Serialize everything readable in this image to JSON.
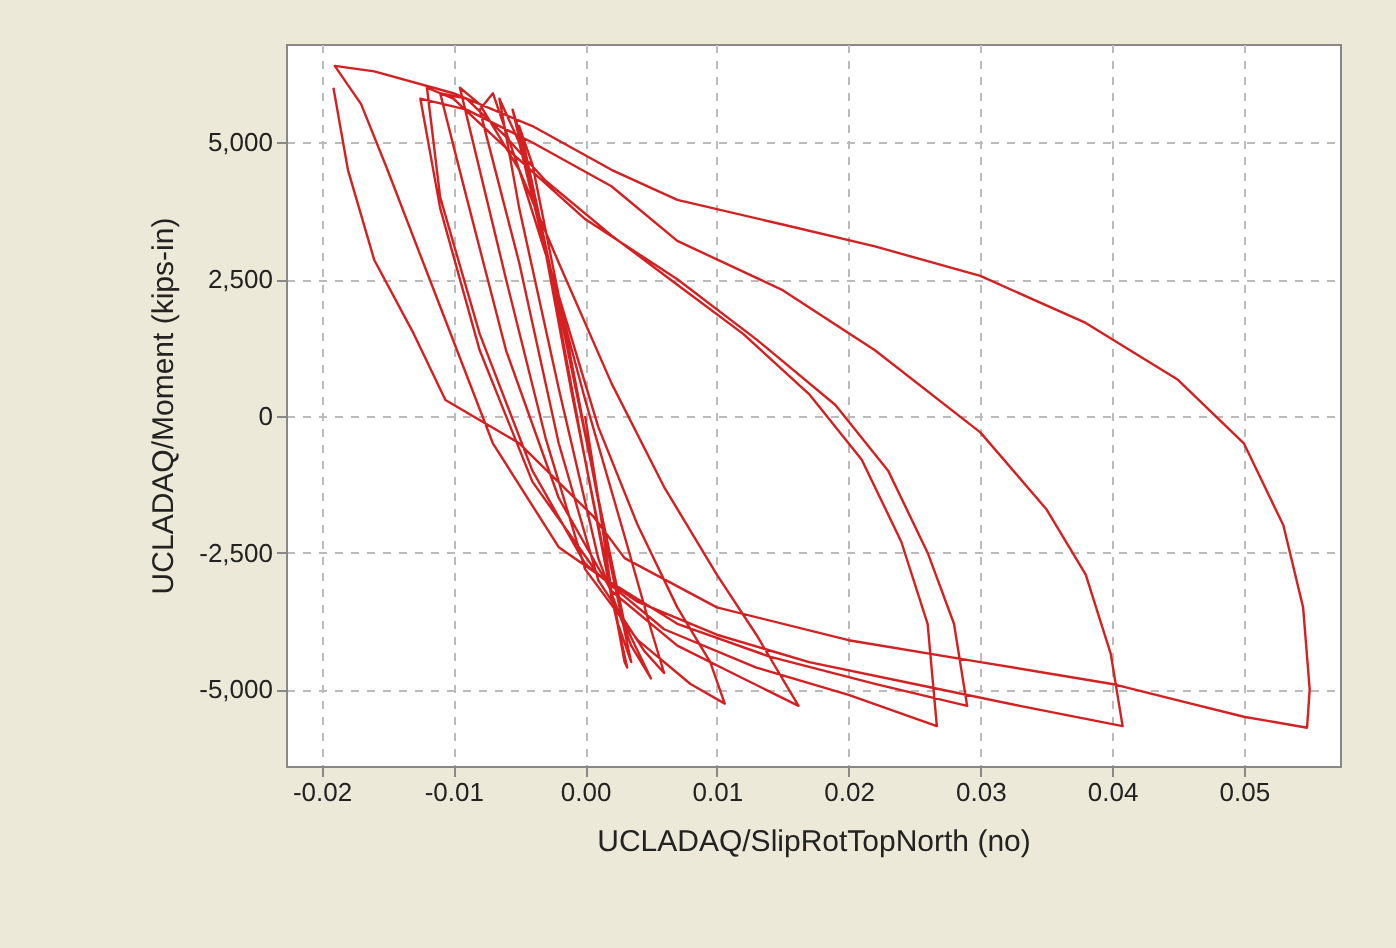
{
  "chart_data": {
    "type": "line",
    "xlabel": "UCLADAQ/SlipRotTopNorth (no)",
    "ylabel": "UCLADAQ/Moment (kips-in)",
    "xlim": [
      -0.0227,
      0.0573
    ],
    "ylim": [
      -6400,
      6800
    ],
    "xticks": [
      {
        "value": -0.02,
        "label": "-0.02"
      },
      {
        "value": -0.01,
        "label": "-0.01"
      },
      {
        "value": 0,
        "label": "0.00"
      },
      {
        "value": 0.01,
        "label": "0.01"
      },
      {
        "value": 0.02,
        "label": "0.02"
      },
      {
        "value": 0.03,
        "label": "0.03"
      },
      {
        "value": 0.04,
        "label": "0.04"
      },
      {
        "value": 0.05,
        "label": "0.05"
      }
    ],
    "yticks": [
      {
        "value": -5000,
        "label": "-5,000"
      },
      {
        "value": -2500,
        "label": "-2,500"
      },
      0,
      {
        "value": 2500,
        "label": "2,500"
      },
      {
        "value": 5000,
        "label": "5,000"
      }
    ],
    "grid": true,
    "marker": "none",
    "line_style": "solid",
    "series": [
      {
        "color": "#d42020",
        "x": [
          0,
          0.001,
          0.002,
          0.003,
          0.0032,
          0.002,
          0,
          -0.002,
          -0.004,
          -0.005,
          -0.004,
          -0.002,
          0,
          0.002,
          0.0035,
          0.0025,
          0.001,
          -0.001,
          -0.003,
          -0.0055,
          -0.0045,
          -0.002,
          0.001,
          0.003,
          0.005,
          0.0035,
          0.001,
          -0.002,
          -0.005,
          -0.0065,
          -0.005,
          -0.003,
          0,
          0.003,
          0.005,
          0.006,
          0.0045,
          0.001,
          -0.002,
          -0.005,
          -0.008,
          -0.007,
          -0.005,
          -0.002,
          0.001,
          0.004,
          0.007,
          0.0095,
          0.0106,
          0.008,
          0.004,
          0,
          -0.003,
          -0.006,
          -0.009,
          -0.0095,
          -0.008,
          -0.005,
          -0.002,
          0.002,
          0.006,
          0.01,
          0.013,
          0.0162,
          0.012,
          0.007,
          0.002,
          -0.002,
          -0.006,
          -0.009,
          -0.011,
          -0.009,
          -0.006,
          -0.003,
          0.002,
          0.007,
          0.012,
          0.017,
          0.021,
          0.024,
          0.026,
          0.0267,
          0.02,
          0.013,
          0.006,
          0,
          -0.004,
          -0.008,
          -0.011,
          -0.012,
          -0.01,
          -0.006,
          0,
          0.007,
          0.013,
          0.019,
          0.023,
          0.026,
          0.028,
          0.029,
          0.022,
          0.014,
          0.007,
          0.001,
          -0.004,
          -0.008,
          -0.011,
          -0.0125,
          -0.009,
          -0.004,
          0.002,
          0.007,
          0.015,
          0.022,
          0.03,
          0.035,
          0.038,
          0.0399,
          0.0408,
          0.033,
          0.025,
          0.017,
          0.01,
          0.004,
          -0.002,
          -0.007,
          -0.011,
          -0.015,
          -0.017,
          -0.019,
          -0.016,
          -0.01,
          -0.004,
          0.002,
          0.007,
          0.015,
          0.022,
          0.03,
          0.038,
          0.045,
          0.05,
          0.053,
          0.0545,
          0.055,
          0.0548,
          0.05,
          0.045,
          0.04,
          0.03,
          0.02,
          0.01,
          0.003,
          0.0006,
          -0.005,
          -0.0106,
          -0.013,
          -0.016,
          -0.018,
          -0.0191
        ],
        "values": [
          0,
          -1500,
          -3200,
          -4500,
          -4600,
          -3300,
          -800,
          1800,
          4200,
          5300,
          4600,
          2200,
          -300,
          -2800,
          -4500,
          -3800,
          -2000,
          400,
          3000,
          5600,
          4800,
          2000,
          -1500,
          -3800,
          -4800,
          -4200,
          -2600,
          500,
          3800,
          5800,
          5000,
          3000,
          300,
          -2200,
          -3900,
          -4700,
          -4300,
          -3000,
          -500,
          2800,
          5600,
          5900,
          4500,
          2200,
          -200,
          -2000,
          -3500,
          -4500,
          -5260,
          -4900,
          -4100,
          -2800,
          -400,
          2500,
          5500,
          6000,
          5700,
          4500,
          2800,
          600,
          -1300,
          -2900,
          -4000,
          -5300,
          -4800,
          -4200,
          -3200,
          -1500,
          1200,
          4000,
          5900,
          5800,
          5100,
          4300,
          3300,
          2400,
          1500,
          400,
          -800,
          -2300,
          -3800,
          -5670,
          -5100,
          -4600,
          -3900,
          -2700,
          -1000,
          1500,
          4000,
          6000,
          5800,
          4900,
          3600,
          2500,
          1400,
          200,
          -1000,
          -2500,
          -3800,
          -5300,
          -4900,
          -4400,
          -3800,
          -2900,
          -1200,
          1200,
          3800,
          5800,
          5600,
          5000,
          4200,
          3200,
          2300,
          1200,
          -300,
          -1700,
          -2900,
          -4350,
          -5670,
          -5300,
          -4900,
          -4500,
          -4000,
          -3400,
          -2400,
          -500,
          2000,
          4500,
          5700,
          6400,
          6300,
          5900,
          5300,
          4500,
          3950,
          3500,
          3100,
          2560,
          1700,
          660,
          -500,
          -2000,
          -3500,
          -5000,
          -5700,
          -5500,
          -5200,
          -4900,
          -4500,
          -4100,
          -3500,
          -2600,
          -1830,
          -500,
          290,
          1500,
          2850,
          4500,
          6000
        ]
      }
    ]
  }
}
